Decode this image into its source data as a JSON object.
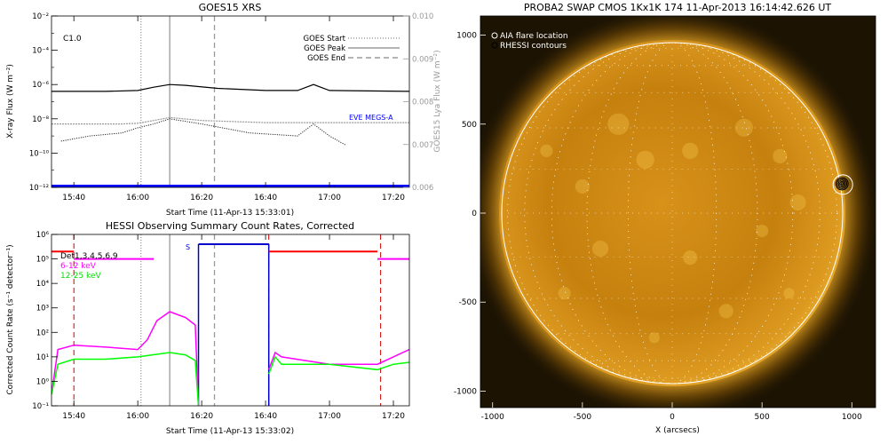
{
  "goes": {
    "title": "GOES15 XRS",
    "ylabel": "X-ray Flux (W m⁻²)",
    "ylabel_right": "GOES15 Lya Flux (W m⁻²)",
    "xlabel": "Start Time (11-Apr-13 15:33:01)",
    "class_label": "C1.0",
    "eve_label": "EVE MEGS-A",
    "legend": [
      "GOES Start",
      "GOES Peak",
      "GOES End"
    ]
  },
  "hessi": {
    "title": "HESSI Observing Summary Count Rates, Corrected",
    "ylabel": "Corrected Count Rate (s⁻¹ detector⁻¹)",
    "xlabel": "Start Time (11-Apr-13 15:33:02)",
    "legend": [
      "Det1,3,4,5,6,9",
      "6-12 keV",
      "12-25 keV"
    ],
    "s_marker": "S"
  },
  "swap": {
    "title": "PROBA2 SWAP CMOS 1Kx1K 174 11-Apr-2013 16:14:42.626 UT",
    "xlabel": "X (arcsecs)",
    "legend": [
      "AIA flare location",
      "RHESSI contours"
    ]
  },
  "chart_data": [
    {
      "type": "line",
      "title": "GOES15 XRS",
      "xlabel": "Start Time (11-Apr-13 15:33:01)",
      "ylabel": "X-ray Flux (W m⁻²)",
      "y2label": "GOES15 Lya Flux (W m⁻²)",
      "scale": "log",
      "xlim": [
        "15:33",
        "17:25"
      ],
      "ylim": [
        1e-12,
        0.01
      ],
      "y2lim": [
        0.006,
        0.01
      ],
      "x_ticks": [
        "15:40",
        "16:00",
        "16:20",
        "16:40",
        "17:00",
        "17:20"
      ],
      "y_ticks": [
        "10⁻¹²",
        "10⁻¹⁰",
        "10⁻⁸",
        "10⁻⁶",
        "10⁻⁴",
        "10⁻²"
      ],
      "y2_ticks": [
        "0.006",
        "0.007",
        "0.008",
        "0.009",
        "0.010"
      ],
      "markers": {
        "GOES Start": "16:01",
        "GOES Peak": "16:10",
        "GOES End": "16:24"
      },
      "series": [
        {
          "name": "",
          "color": "#000000",
          "x": [
            "15:33",
            "15:50",
            "16:00",
            "16:05",
            "16:10",
            "16:15",
            "16:25",
            "16:40",
            "16:50",
            "16:55",
            "17:00",
            "17:25"
          ],
          "y": [
            4e-07,
            4e-07,
            4.5e-07,
            7e-07,
            1e-06,
            9e-07,
            6e-07,
            4.5e-07,
            4.5e-07,
            1e-06,
            4.5e-07,
            4e-07
          ]
        },
        {
          "name": "",
          "color": "#999999",
          "x": [
            "15:33",
            "15:55",
            "16:00",
            "16:05",
            "16:10",
            "16:20",
            "16:40",
            "17:00",
            "17:25"
          ],
          "y": [
            5e-09,
            5e-09,
            5.5e-09,
            8e-09,
            1.2e-08,
            8e-09,
            6e-09,
            6e-09,
            6e-09
          ]
        },
        {
          "name": "",
          "color": "#000000",
          "x": [
            "15:36",
            "15:45",
            "15:55",
            "16:00",
            "16:05",
            "16:10",
            "16:20",
            "16:35",
            "16:50",
            "16:55",
            "17:00",
            "17:05"
          ],
          "y": [
            5e-10,
            1e-09,
            1.5e-09,
            3e-09,
            5e-09,
            1e-08,
            5e-09,
            1.5e-09,
            1e-09,
            5e-09,
            1e-09,
            3e-10
          ]
        },
        {
          "name": "EVE MEGS-A",
          "color": "#0000ff",
          "x": [
            "15:33",
            "17:25"
          ],
          "y": [
            1.2e-12,
            1.2e-12
          ]
        }
      ]
    },
    {
      "type": "line",
      "title": "HESSI Observing Summary Count Rates, Corrected",
      "xlabel": "Start Time (11-Apr-13 15:33:02)",
      "ylabel": "Corrected Count Rate (s⁻¹ detector⁻¹)",
      "scale": "log",
      "xlim": [
        "15:33",
        "17:25"
      ],
      "ylim": [
        0.1,
        1000000.0
      ],
      "x_ticks": [
        "15:40",
        "16:00",
        "16:20",
        "16:40",
        "17:00",
        "17:20"
      ],
      "y_ticks": [
        "10⁻¹",
        "10⁰",
        "10¹",
        "10²",
        "10³",
        "10⁴",
        "10⁵",
        "10⁶"
      ],
      "series": [
        {
          "name": "6-12 keV",
          "color": "#ff00ff",
          "x": [
            "15:33",
            "15:35",
            "15:40",
            "15:50",
            "16:00",
            "16:03",
            "16:06",
            "16:10",
            "16:15",
            "16:18",
            "16:19"
          ],
          "y": [
            0.3,
            20,
            30,
            25,
            20,
            50,
            300,
            700,
            400,
            200,
            0.1
          ]
        },
        {
          "name": "12-25 keV",
          "color": "#00ff00",
          "x": [
            "15:33",
            "15:35",
            "15:40",
            "15:50",
            "16:00",
            "16:10",
            "16:15",
            "16:18",
            "16:19"
          ],
          "y": [
            0.3,
            5,
            8,
            8,
            10,
            15,
            12,
            7,
            0.1
          ]
        },
        {
          "name": "",
          "color": "#ff00ff",
          "x": [
            "16:41",
            "16:43",
            "16:45",
            "17:00",
            "17:15",
            "17:20",
            "17:25"
          ],
          "y": [
            3,
            15,
            10,
            5,
            5,
            10,
            20
          ]
        },
        {
          "name": "",
          "color": "#00ff00",
          "x": [
            "16:41",
            "16:43",
            "16:45",
            "17:00",
            "17:15",
            "17:20",
            "17:25"
          ],
          "y": [
            2,
            10,
            5,
            5,
            3,
            5,
            6
          ]
        }
      ],
      "state_bands": [
        {
          "label": "",
          "color": "#ff0000",
          "from": "15:33",
          "to": "15:40",
          "level": 200000.0
        },
        {
          "label": "",
          "color": "#ff00ff",
          "from": "15:40",
          "to": "16:05",
          "level": 100000.0
        },
        {
          "label": "S",
          "color": "#0000cc",
          "from": "16:19",
          "to": "16:41",
          "level": 400000.0
        },
        {
          "label": "",
          "color": "#ff0000",
          "from": "16:41",
          "to": "17:15",
          "level": 200000.0
        },
        {
          "label": "",
          "color": "#ff00ff",
          "from": "17:15",
          "to": "17:25",
          "level": 100000.0
        }
      ]
    },
    {
      "type": "scatter",
      "title": "PROBA2 SWAP CMOS 1Kx1K 174 11-Apr-2013 16:14:42.626 UT",
      "xlabel": "X (arcsecs)",
      "xlim": [
        -1100,
        1100
      ],
      "ylim": [
        -1100,
        1100
      ],
      "x_ticks": [
        "-1000",
        "-500",
        "0",
        "500",
        "1000"
      ],
      "y_ticks": [
        "-1000",
        "-500",
        "0",
        "500",
        "1000"
      ],
      "aia_flare_location": [
        950,
        160
      ],
      "solar_radius_arcsec": 960
    }
  ]
}
